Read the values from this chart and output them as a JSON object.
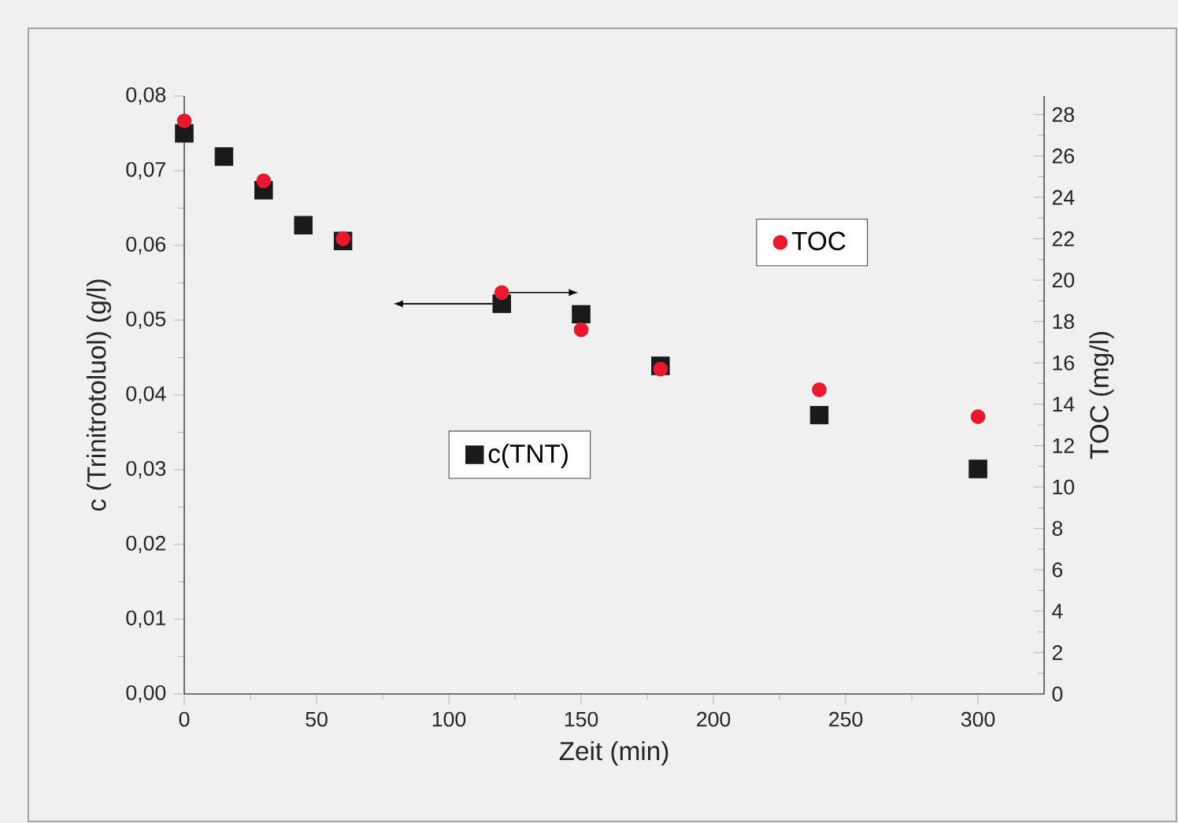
{
  "chart_data": {
    "type": "scatter",
    "xlabel": "Zeit (min)",
    "ylabel": "c (Trinitrotoluol) (g/l)",
    "y2label": "TOC (mg/l)",
    "xlim": [
      0,
      325
    ],
    "xticks": [
      0,
      50,
      100,
      150,
      200,
      250,
      300
    ],
    "ylim": [
      0,
      0.08
    ],
    "yticks": [
      {
        "value": 0,
        "label": "0,00"
      },
      {
        "value": 0.01,
        "label": "0,01"
      },
      {
        "value": 0.02,
        "label": "0,02"
      },
      {
        "value": 0.03,
        "label": "0,03"
      },
      {
        "value": 0.04,
        "label": "0,04"
      },
      {
        "value": 0.05,
        "label": "0,05"
      },
      {
        "value": 0.06,
        "label": "0,06"
      },
      {
        "value": 0.07,
        "label": "0,07"
      },
      {
        "value": 0.08,
        "label": "0,08"
      }
    ],
    "y2lim": [
      0,
      28.9
    ],
    "y2ticks": [
      0,
      2,
      4,
      6,
      8,
      10,
      12,
      14,
      16,
      18,
      20,
      22,
      24,
      26,
      28
    ],
    "legend": "center",
    "grid": false,
    "series": [
      {
        "name": "c(TNT)",
        "color": "#1a1a1a",
        "marker": "square",
        "x": [
          0,
          15,
          30,
          45,
          60,
          120,
          150,
          180,
          240,
          300
        ],
        "values": [
          0.075,
          0.0719,
          0.0674,
          0.0627,
          0.0606,
          0.0522,
          0.0508,
          0.0439,
          0.0373,
          0.0301
        ]
      },
      {
        "name": "TOC",
        "color": "#e8192c",
        "marker": "circle",
        "axis": "y2",
        "x": [
          0,
          30,
          60,
          120,
          150,
          180,
          240,
          300
        ],
        "values": [
          27.7,
          24.8,
          22.0,
          19.4,
          17.6,
          15.7,
          14.7,
          13.4
        ]
      }
    ]
  }
}
